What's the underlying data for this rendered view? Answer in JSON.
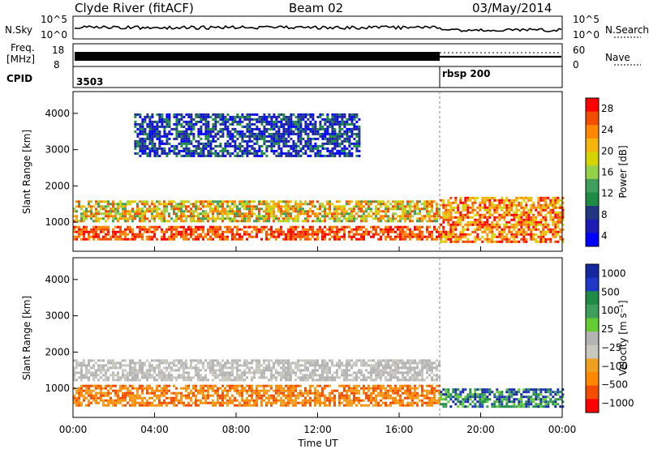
{
  "header": {
    "station": "Clyde River (fitACF)",
    "beam": "Beam 02",
    "date": "03/May/2014"
  },
  "top_panels": {
    "nsky_label": "N.Sky",
    "nsky_ticks": [
      "10^5",
      "10^0"
    ],
    "nsearch_label": "N.Search",
    "nsearch_ticks": [
      "10^5",
      "10^0"
    ],
    "freq_label_1": "Freq.",
    "freq_label_2": "[MHz]",
    "freq_ticks": [
      "18",
      "8"
    ],
    "nave_label": "Nave",
    "nave_ticks": [
      "60",
      "0"
    ],
    "cpid_label": "CPID",
    "cpid_value_1": "3503",
    "cpid_value_2": "rbsp 200"
  },
  "chart_data": [
    {
      "type": "heatmap",
      "title": "",
      "ylabel": "Slant Range [km]",
      "ylim": [
        200,
        4600
      ],
      "xlim_hours": [
        0,
        24
      ],
      "yticks": [
        "1000",
        "2000",
        "3000",
        "4000"
      ],
      "colorbar": {
        "label": "Power [dB]",
        "ticks": [
          "28",
          "24",
          "20",
          "16",
          "12",
          "8",
          "4"
        ],
        "colors": [
          "#ff0000",
          "#f24d00",
          "#ff8800",
          "#f5b50c",
          "#d4d400",
          "#96d14a",
          "#3f9e5c",
          "#1f8c46",
          "#203880",
          "#1c1cb4",
          "#0000ff"
        ]
      },
      "bands_km": [
        {
          "start_h": 0.0,
          "end_h": 18.0,
          "range": [
            500,
            900
          ],
          "dominant": "red"
        },
        {
          "start_h": 0.0,
          "end_h": 18.0,
          "range": [
            1000,
            1600
          ],
          "dominant": "orange"
        },
        {
          "start_h": 18.0,
          "end_h": 24.0,
          "range": [
            450,
            1700
          ],
          "dominant": "red/orange"
        },
        {
          "start_h": 3.0,
          "end_h": 14.0,
          "range": [
            2800,
            4000
          ],
          "dominant": "blue"
        }
      ]
    },
    {
      "type": "heatmap",
      "title": "",
      "ylabel": "Slant Range [km]",
      "ylim": [
        200,
        4600
      ],
      "xlim_hours": [
        0,
        24
      ],
      "yticks": [
        "1000",
        "2000",
        "3000",
        "4000"
      ],
      "xticks": [
        "00:00",
        "04:00",
        "08:00",
        "12:00",
        "16:00",
        "20:00",
        "00:00"
      ],
      "xlabel": "Time UT",
      "colorbar": {
        "label": "Velocity [m s⁻¹]",
        "ticks": [
          "1000",
          "500",
          "100",
          "25",
          "−25",
          "−100",
          "−500",
          "−1000"
        ],
        "colors": [
          "#1428a0",
          "#2038c8",
          "#1f8c46",
          "#3f9e5c",
          "#66cc33",
          "#b4b4b4",
          "#c8c8c0",
          "#f0a020",
          "#ff8800",
          "#f24d00",
          "#ff0000"
        ]
      },
      "bands_km": [
        {
          "start_h": 0.0,
          "end_h": 18.0,
          "range": [
            1200,
            1800
          ],
          "dominant": "grey"
        },
        {
          "start_h": 0.0,
          "end_h": 18.0,
          "range": [
            500,
            1100
          ],
          "dominant": "orange"
        },
        {
          "start_h": 18.0,
          "end_h": 24.0,
          "range": [
            500,
            1000
          ],
          "dominant": "green/blue"
        }
      ]
    }
  ]
}
